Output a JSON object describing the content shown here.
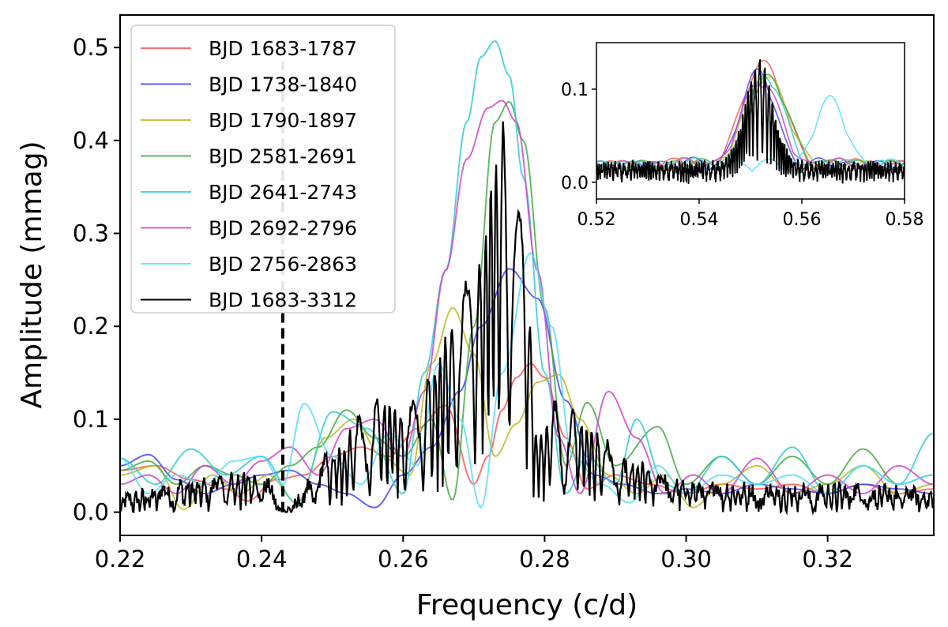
{
  "chart_data": [
    {
      "id": "main",
      "type": "line",
      "xlabel": "Frequency (c/d)",
      "ylabel": "Amplitude (mmag)",
      "xlim": [
        0.22,
        0.335
      ],
      "ylim": [
        -0.025,
        0.535
      ],
      "xticks": [
        0.22,
        0.24,
        0.26,
        0.28,
        0.3,
        0.32
      ],
      "xtick_labels": [
        "0.22",
        "0.24",
        "0.26",
        "0.28",
        "0.30",
        "0.32"
      ],
      "yticks": [
        0.0,
        0.1,
        0.2,
        0.3,
        0.4,
        0.5
      ],
      "ytick_labels": [
        "0.0",
        "0.1",
        "0.2",
        "0.3",
        "0.4",
        "0.5"
      ],
      "grid": false,
      "legend_position": "upper-left",
      "vline": {
        "x": 0.243,
        "ymin": 0.0,
        "ymax": 0.485,
        "style": "dashed",
        "color": "#000000"
      },
      "series": [
        {
          "name": "BJD 1683-1787",
          "color": "#ff5555",
          "peak_x": 0.2783,
          "peak_y": 0.16,
          "width": 0.0085,
          "x": [
            0.22,
            0.225,
            0.23,
            0.235,
            0.238,
            0.242,
            0.246,
            0.25,
            0.254,
            0.258,
            0.262,
            0.266,
            0.27,
            0.272,
            0.274,
            0.276,
            0.278,
            0.28,
            0.283,
            0.286,
            0.29,
            0.295,
            0.3,
            0.305,
            0.31,
            0.315,
            0.32,
            0.325,
            0.33,
            0.335
          ],
          "y": [
            0.045,
            0.05,
            0.035,
            0.025,
            0.012,
            0.035,
            0.04,
            0.06,
            0.07,
            0.06,
            0.09,
            0.115,
            0.03,
            0.06,
            0.11,
            0.145,
            0.16,
            0.145,
            0.08,
            0.025,
            0.04,
            0.03,
            0.02,
            0.03,
            0.025,
            0.03,
            0.02,
            0.03,
            0.02,
            0.025
          ]
        },
        {
          "name": "BJD 1738-1840",
          "color": "#4444ee",
          "peak_x": 0.2752,
          "peak_y": 0.262,
          "width": 0.0095,
          "x": [
            0.22,
            0.224,
            0.228,
            0.232,
            0.236,
            0.24,
            0.244,
            0.248,
            0.252,
            0.256,
            0.26,
            0.264,
            0.268,
            0.271,
            0.275,
            0.279,
            0.283,
            0.287,
            0.291,
            0.296,
            0.3,
            0.305,
            0.31,
            0.315,
            0.32,
            0.325,
            0.33,
            0.335
          ],
          "y": [
            0.05,
            0.062,
            0.035,
            0.02,
            0.03,
            0.04,
            0.045,
            0.03,
            0.02,
            0.005,
            0.04,
            0.07,
            0.13,
            0.2,
            0.262,
            0.23,
            0.12,
            0.04,
            0.03,
            0.02,
            0.025,
            0.02,
            0.03,
            0.025,
            0.02,
            0.03,
            0.025,
            0.02
          ]
        },
        {
          "name": "BJD 1790-1897",
          "color": "#bbbb22",
          "peak_x": 0.2672,
          "peak_y": 0.22,
          "width": 0.007,
          "x": [
            0.22,
            0.225,
            0.229,
            0.233,
            0.237,
            0.241,
            0.245,
            0.249,
            0.253,
            0.257,
            0.261,
            0.264,
            0.267,
            0.27,
            0.273,
            0.276,
            0.279,
            0.282,
            0.285,
            0.289,
            0.293,
            0.297,
            0.301,
            0.305,
            0.31,
            0.315,
            0.32,
            0.325,
            0.33,
            0.335
          ],
          "y": [
            0.04,
            0.05,
            0.003,
            0.04,
            0.02,
            0.04,
            0.01,
            0.08,
            0.1,
            0.06,
            0.04,
            0.16,
            0.22,
            0.17,
            0.06,
            0.095,
            0.14,
            0.148,
            0.1,
            0.04,
            0.02,
            0.04,
            0.005,
            0.03,
            0.05,
            0.02,
            0.03,
            0.05,
            0.02,
            0.03
          ]
        },
        {
          "name": "BJD 2581-2691",
          "color": "#44aa44",
          "peak_x": 0.2745,
          "peak_y": 0.442,
          "width": 0.0068,
          "x": [
            0.22,
            0.224,
            0.228,
            0.232,
            0.236,
            0.24,
            0.244,
            0.248,
            0.252,
            0.256,
            0.26,
            0.264,
            0.267,
            0.27,
            0.273,
            0.275,
            0.277,
            0.28,
            0.283,
            0.286,
            0.29,
            0.296,
            0.3,
            0.305,
            0.31,
            0.315,
            0.32,
            0.325,
            0.33,
            0.335
          ],
          "y": [
            0.045,
            0.055,
            0.03,
            0.05,
            0.04,
            0.03,
            0.05,
            0.07,
            0.11,
            0.08,
            0.06,
            0.1,
            0.013,
            0.2,
            0.42,
            0.442,
            0.4,
            0.22,
            0.05,
            0.118,
            0.05,
            0.092,
            0.03,
            0.06,
            0.03,
            0.06,
            0.03,
            0.068,
            0.03,
            0.04
          ]
        },
        {
          "name": "BJD 2641-2743",
          "color": "#33cccc",
          "peak_x": 0.2733,
          "peak_y": 0.507,
          "width": 0.0068,
          "x": [
            0.22,
            0.225,
            0.23,
            0.235,
            0.24,
            0.245,
            0.25,
            0.255,
            0.26,
            0.263,
            0.266,
            0.269,
            0.271,
            0.273,
            0.275,
            0.277,
            0.28,
            0.283,
            0.286,
            0.29,
            0.293,
            0.297,
            0.3,
            0.305,
            0.31,
            0.315,
            0.32,
            0.325,
            0.33,
            0.335
          ],
          "y": [
            0.058,
            0.03,
            0.068,
            0.04,
            0.06,
            0.01,
            0.108,
            0.09,
            0.02,
            0.15,
            0.26,
            0.42,
            0.49,
            0.507,
            0.47,
            0.36,
            0.15,
            0.02,
            0.06,
            0.03,
            0.1,
            0.03,
            0.02,
            0.06,
            0.03,
            0.07,
            0.02,
            0.05,
            0.03,
            0.085
          ]
        },
        {
          "name": "BJD 2692-2796",
          "color": "#cc44cc",
          "peak_x": 0.274,
          "peak_y": 0.443,
          "width": 0.0072,
          "x": [
            0.22,
            0.224,
            0.228,
            0.232,
            0.236,
            0.24,
            0.244,
            0.248,
            0.252,
            0.256,
            0.26,
            0.263,
            0.266,
            0.269,
            0.272,
            0.274,
            0.276,
            0.279,
            0.282,
            0.285,
            0.289,
            0.293,
            0.297,
            0.301,
            0.305,
            0.31,
            0.315,
            0.32,
            0.325,
            0.33,
            0.335
          ],
          "y": [
            0.03,
            0.04,
            0.02,
            0.05,
            0.03,
            0.055,
            0.07,
            0.04,
            0.09,
            0.1,
            0.06,
            0.13,
            0.26,
            0.38,
            0.435,
            0.443,
            0.42,
            0.26,
            0.08,
            0.02,
            0.13,
            0.08,
            0.02,
            0.04,
            0.02,
            0.058,
            0.02,
            0.04,
            0.02,
            0.05,
            0.03
          ]
        },
        {
          "name": "BJD 2756-2863",
          "color": "#55ddff",
          "peak_x": 0.2778,
          "peak_y": 0.279,
          "width": 0.0075,
          "x": [
            0.22,
            0.224,
            0.228,
            0.232,
            0.236,
            0.24,
            0.243,
            0.246,
            0.25,
            0.254,
            0.258,
            0.262,
            0.265,
            0.268,
            0.271,
            0.274,
            0.278,
            0.281,
            0.284,
            0.288,
            0.292,
            0.296,
            0.3,
            0.305,
            0.31,
            0.315,
            0.32,
            0.325,
            0.33,
            0.335
          ],
          "y": [
            0.058,
            0.02,
            0.04,
            0.03,
            0.055,
            0.06,
            0.03,
            0.117,
            0.06,
            0.03,
            0.085,
            0.05,
            0.16,
            0.1,
            0.005,
            0.15,
            0.279,
            0.2,
            0.06,
            0.03,
            0.01,
            0.05,
            0.02,
            0.04,
            0.03,
            0.04,
            0.02,
            0.05,
            0.03,
            0.04
          ]
        },
        {
          "name": "BJD 1683-3312",
          "color": "#000000",
          "peak_x": 0.275,
          "peak_y": 0.445,
          "width": 0.004,
          "x": [
            0.22,
            0.23,
            0.24,
            0.243,
            0.25,
            0.256,
            0.26,
            0.264,
            0.267,
            0.269,
            0.271,
            0.273,
            0.275,
            0.277,
            0.279,
            0.282,
            0.287,
            0.292,
            0.3,
            0.31,
            0.32,
            0.335
          ],
          "y": [
            0.015,
            0.03,
            0.04,
            0.0,
            0.06,
            0.12,
            0.1,
            0.15,
            0.2,
            0.243,
            0.27,
            0.37,
            0.445,
            0.3,
            0.08,
            0.12,
            0.08,
            0.05,
            0.03,
            0.025,
            0.025,
            0.02
          ]
        }
      ]
    },
    {
      "id": "inset",
      "type": "line",
      "xlim": [
        0.52,
        0.58
      ],
      "ylim": [
        -0.018,
        0.15
      ],
      "xticks": [
        0.52,
        0.54,
        0.56,
        0.58
      ],
      "xtick_labels": [
        "0.52",
        "0.54",
        "0.56",
        "0.58"
      ],
      "yticks": [
        0.0,
        0.1
      ],
      "ytick_labels": [
        "0.0",
        "0.1"
      ],
      "grid": false,
      "series": [
        {
          "name": "BJD 1683-1787",
          "color": "#ff5555",
          "peak_x": 0.5525,
          "peak_y": 0.109,
          "width": 0.0035
        },
        {
          "name": "BJD 1738-1840",
          "color": "#4444ee",
          "peak_x": 0.5515,
          "peak_y": 0.1,
          "width": 0.0028
        },
        {
          "name": "BJD 1790-1897",
          "color": "#bbbb22",
          "peak_x": 0.553,
          "peak_y": 0.095,
          "width": 0.0035
        },
        {
          "name": "BJD 2581-2691",
          "color": "#44aa44",
          "peak_x": 0.5535,
          "peak_y": 0.094,
          "width": 0.0032
        },
        {
          "name": "BJD 2641-2743",
          "color": "#33cccc",
          "peak_x": 0.553,
          "peak_y": 0.095,
          "width": 0.003
        },
        {
          "name": "BJD 2692-2796",
          "color": "#cc44cc",
          "peak_x": 0.552,
          "peak_y": 0.09,
          "width": 0.0032
        },
        {
          "name": "BJD 2756-2863",
          "color": "#55ddff",
          "peak_x": 0.5655,
          "peak_y": 0.071,
          "width": 0.0025
        },
        {
          "name": "BJD 1683-3312",
          "color": "#000000",
          "peak_x": 0.5517,
          "peak_y": 0.133,
          "width": 0.0013
        }
      ]
    }
  ]
}
